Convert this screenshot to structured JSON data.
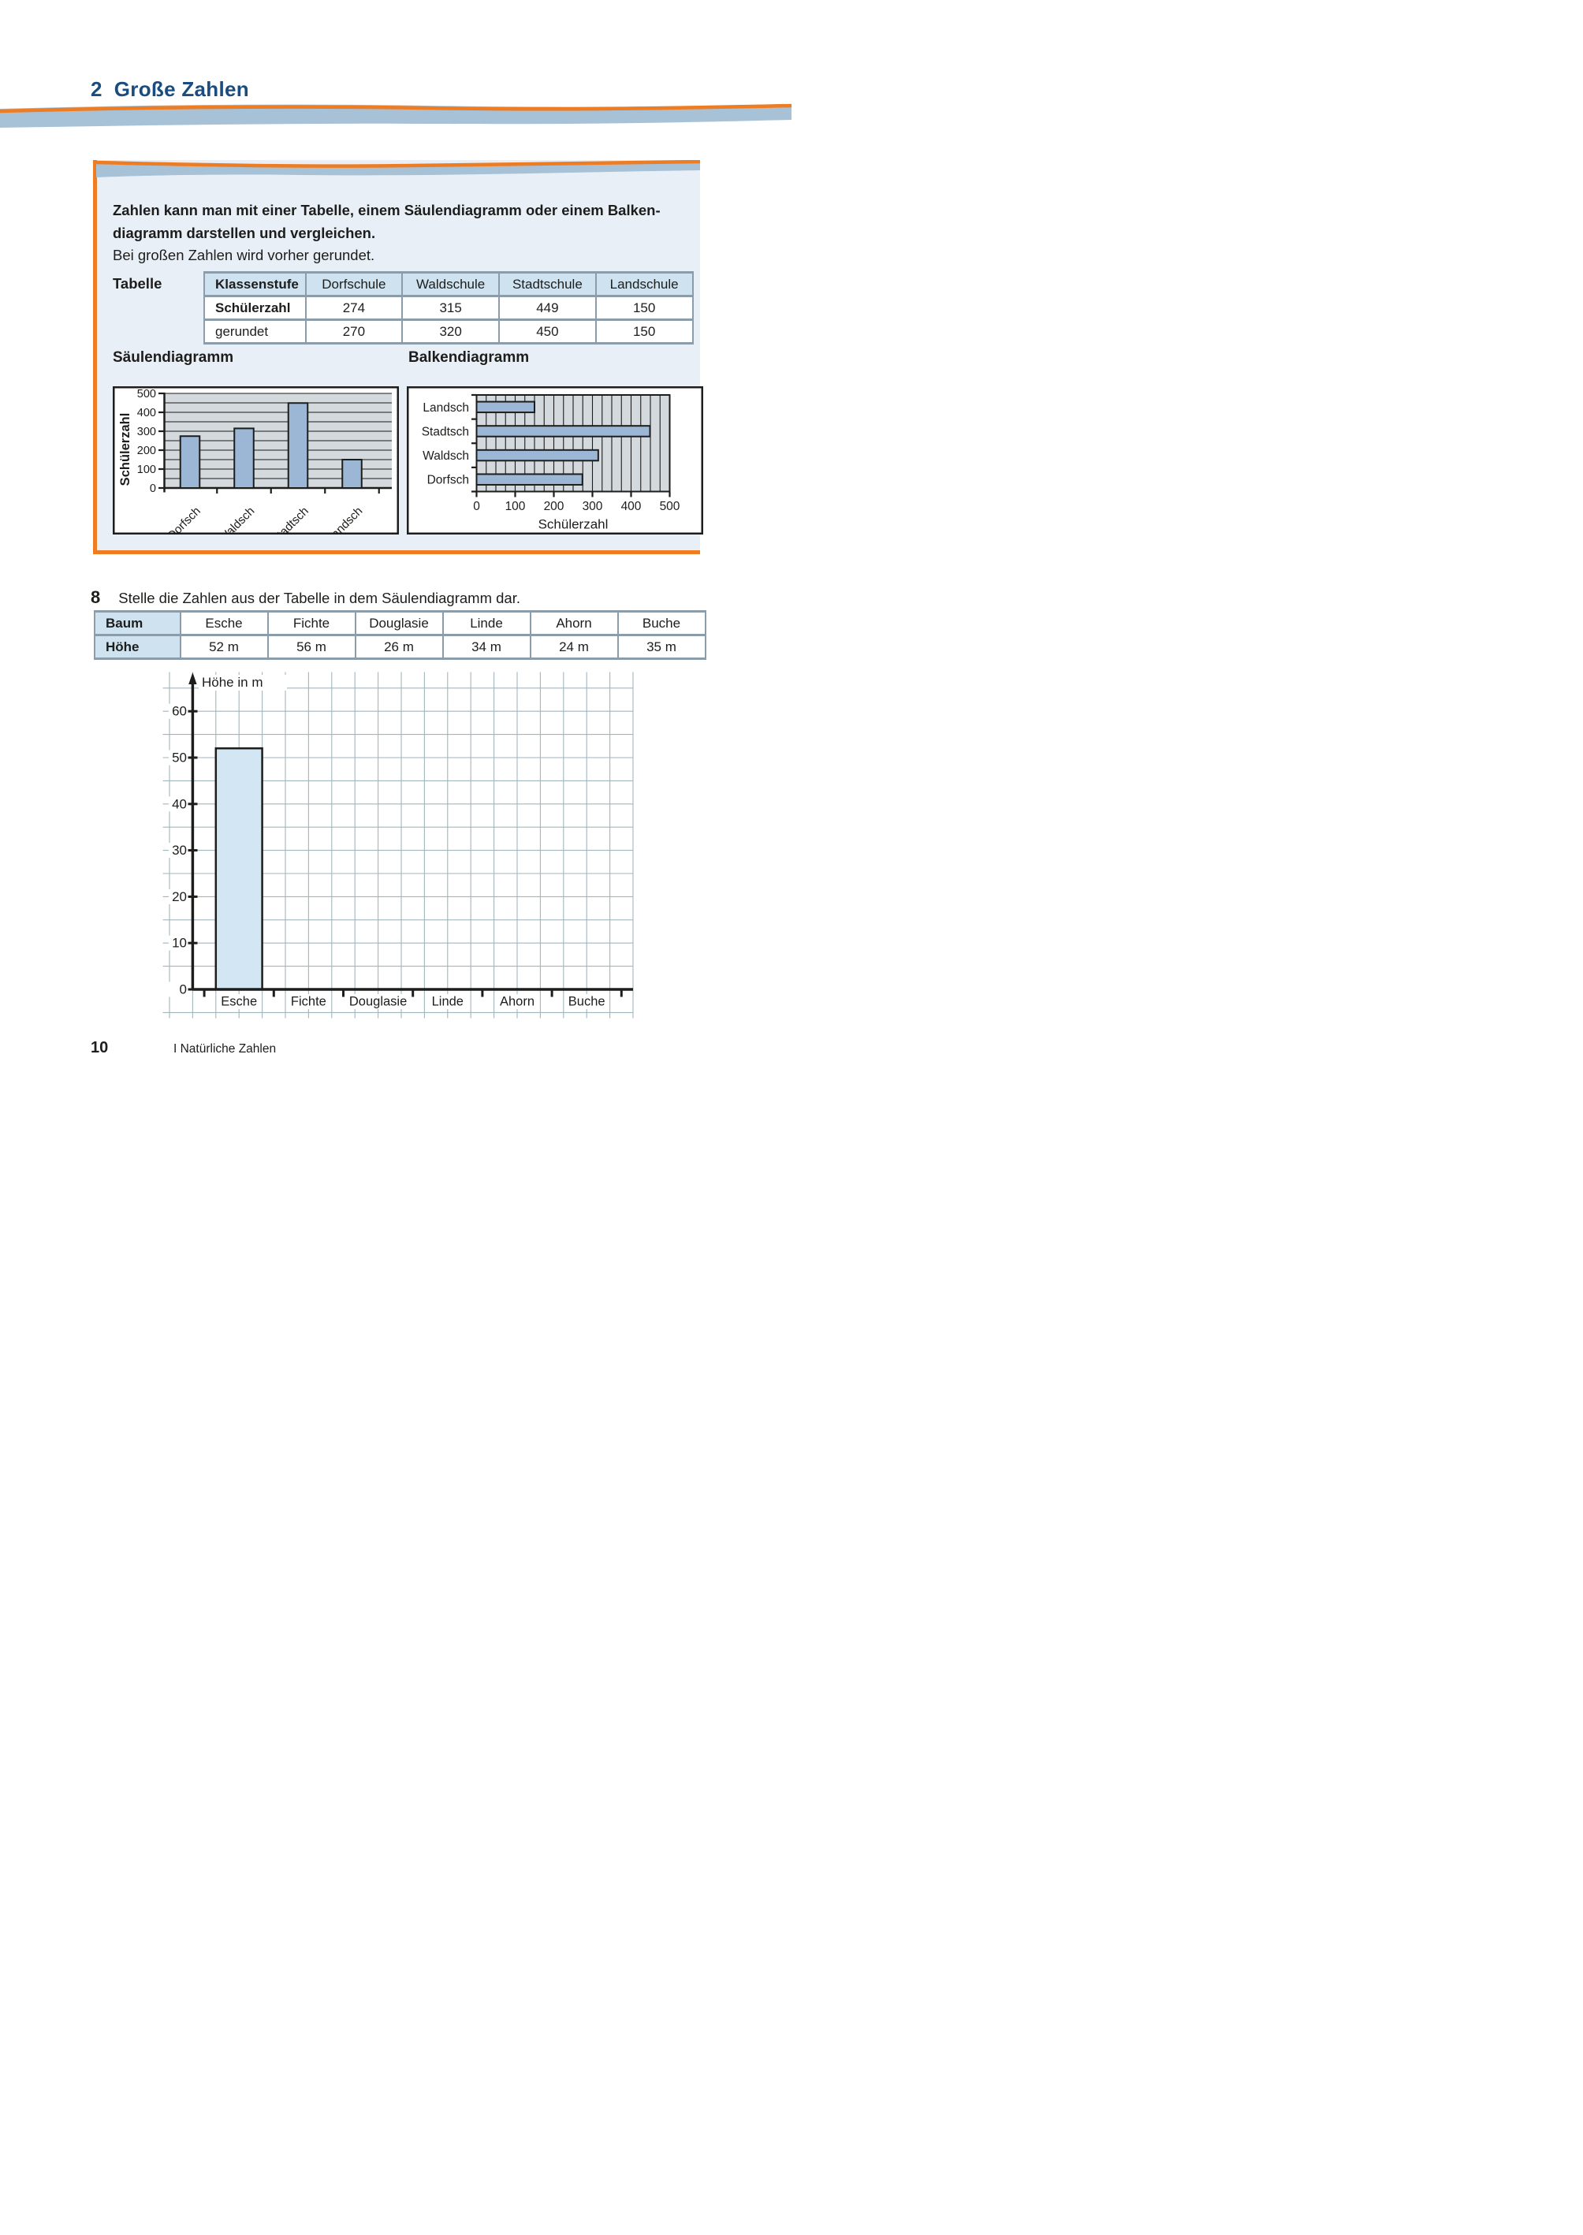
{
  "page": {
    "title_number": "2",
    "title": "Große Zahlen",
    "footer_page": "10",
    "footer_chapter": "I Natürliche Zahlen"
  },
  "info_box": {
    "bold_text_line1": "Zahlen kann man mit einer Tabelle, einem Säulendiagramm oder einem Balken-",
    "bold_text_line2": "diagramm darstellen und vergleichen.",
    "text_line3": "Bei großen Zahlen wird vorher gerundet.",
    "table_label": "Tabelle",
    "table": {
      "headers": [
        "Klassenstufe",
        "Dorfschule",
        "Waldschule",
        "Stadtschule",
        "Landschule"
      ],
      "rows": [
        {
          "label": "Schülerzahl",
          "bold": true,
          "values": [
            "274",
            "315",
            "449",
            "150"
          ]
        },
        {
          "label": "gerundet",
          "bold": false,
          "values": [
            "270",
            "320",
            "450",
            "150"
          ]
        }
      ]
    }
  },
  "exercise": {
    "number": "8",
    "text": "Stelle die Zahlen aus der Tabelle in dem Säulendiagramm dar.",
    "table": {
      "rows": [
        [
          "Baum",
          "Esche",
          "Fichte",
          "Douglasie",
          "Linde",
          "Ahorn",
          "Buche"
        ],
        [
          "Höhe",
          "52 m",
          "56 m",
          "26 m",
          "34 m",
          "24 m",
          "35 m"
        ]
      ]
    }
  },
  "chart_data": [
    {
      "id": "saeulendiagramm",
      "type": "bar",
      "orientation": "vertical",
      "title": "Säulendiagramm",
      "ylabel": "Schülerzahl",
      "categories": [
        "Dorfsch",
        "Waldsch",
        "Stadtsch",
        "Landsch"
      ],
      "values": [
        274,
        315,
        449,
        150
      ],
      "ylim": [
        0,
        500
      ],
      "yticks": [
        0,
        100,
        200,
        300,
        400,
        500
      ],
      "gridline_step": 50,
      "grid": true,
      "legend": "none"
    },
    {
      "id": "balkendiagramm",
      "type": "bar",
      "orientation": "horizontal",
      "title": "Balkendiagramm",
      "xlabel": "Schülerzahl",
      "categories_top_to_bottom": [
        "Landsch",
        "Stadtsch",
        "Waldsch",
        "Dorfsch"
      ],
      "values_top_to_bottom": [
        150,
        449,
        315,
        274
      ],
      "xlim": [
        0,
        500
      ],
      "xticks": [
        0,
        100,
        200,
        300,
        400,
        500
      ],
      "gridline_step": 25,
      "grid": true,
      "legend": "none"
    },
    {
      "id": "hoehe-saeulendiagramm",
      "type": "bar",
      "orientation": "vertical",
      "ylabel": "Höhe in m",
      "categories": [
        "Esche",
        "Fichte",
        "Douglasie",
        "Linde",
        "Ahorn",
        "Buche"
      ],
      "table_values": [
        52,
        56,
        26,
        34,
        24,
        35
      ],
      "plotted_values": [
        52,
        null,
        null,
        null,
        null,
        null
      ],
      "ylim": [
        0,
        65
      ],
      "yticks": [
        0,
        10,
        20,
        30,
        40,
        50,
        60
      ],
      "grid_cell_units": 5,
      "grid": true,
      "legend": "none"
    }
  ],
  "colors": {
    "title_blue": "#1b4c7f",
    "orange": "#ee7c22",
    "band_blue": "#a7c1d7",
    "box_bg": "#e9eff6",
    "table_header_bg": "#cfe2ef",
    "table_border": "#8b9dab",
    "plot_bg_gray": "#d3d9dc",
    "bar_steel_blue": "#9cb7d6",
    "big_bar_fill": "#d2e6f4",
    "grid_line": "#a2b6bd",
    "ink": "#1d1d1b"
  }
}
